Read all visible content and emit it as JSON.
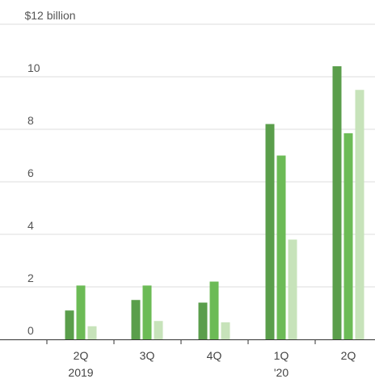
{
  "chart_data": {
    "type": "bar",
    "title": "",
    "xlabel": "",
    "ylabel": "",
    "y_unit_label": "$12 billion",
    "ylim": [
      0,
      12
    ],
    "yticks": [
      {
        "value": 12,
        "label": "$12 billion"
      },
      {
        "value": 10,
        "label": "10"
      },
      {
        "value": 8,
        "label": "8"
      },
      {
        "value": 6,
        "label": "6"
      },
      {
        "value": 4,
        "label": "4"
      },
      {
        "value": 2,
        "label": "2"
      },
      {
        "value": 0,
        "label": "0"
      }
    ],
    "grid": true,
    "categories": [
      {
        "label": "2Q",
        "sublabel": "2019"
      },
      {
        "label": "3Q",
        "sublabel": ""
      },
      {
        "label": "4Q",
        "sublabel": ""
      },
      {
        "label": "1Q",
        "sublabel": "'20"
      },
      {
        "label": "2Q",
        "sublabel": ""
      }
    ],
    "series": [
      {
        "color": "#5a9e4b",
        "values": [
          1.1,
          1.5,
          1.4,
          8.2,
          10.4
        ]
      },
      {
        "color": "#6cbb56",
        "values": [
          2.05,
          2.05,
          2.2,
          7.0,
          7.85
        ]
      },
      {
        "color": "#c7e3ba",
        "values": [
          0.5,
          0.7,
          0.65,
          3.8,
          9.5
        ]
      }
    ]
  }
}
